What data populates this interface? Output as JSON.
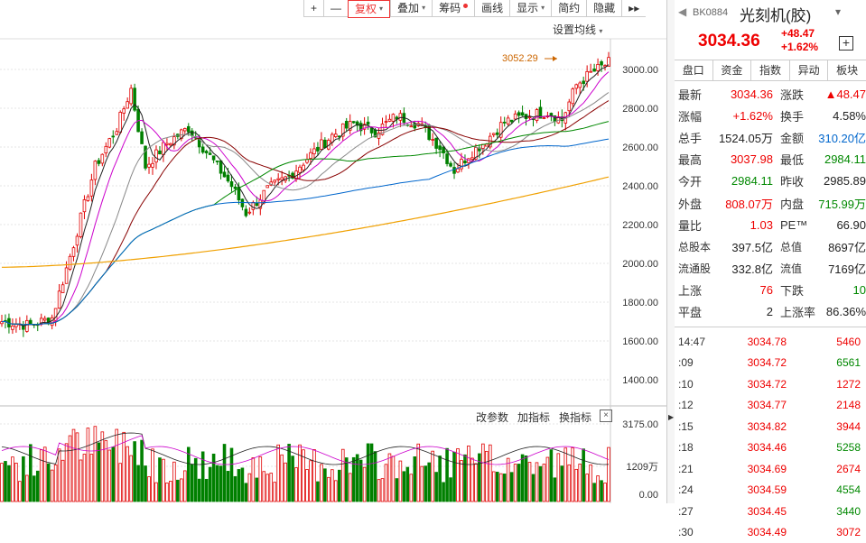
{
  "toolbar": {
    "items": [
      {
        "label": "+"
      },
      {
        "label": "—"
      },
      {
        "label": "复权",
        "caret": "▾"
      },
      {
        "label": "叠加",
        "caret": "▾"
      },
      {
        "label": "筹码"
      },
      {
        "label": "画线"
      },
      {
        "label": "显示",
        "caret": "▾"
      },
      {
        "label": "简约"
      },
      {
        "label": "隐藏"
      },
      {
        "label": "▸▸"
      }
    ]
  },
  "ma_settings": {
    "label": "设置均线",
    "caret": "▾"
  },
  "chart": {
    "y_axis_labels": [
      "3000.00",
      "2800.00",
      "2600.00",
      "2400.00",
      "2200.00",
      "2000.00",
      "1800.00",
      "1600.00",
      "1400.00"
    ],
    "high_marker": "3052.29",
    "volume_axis_labels": [
      "3175.00",
      "1209万",
      "0.00"
    ]
  },
  "indicator_bar": {
    "items": [
      "改参数",
      "加指标",
      "换指标"
    ],
    "close": "×"
  },
  "colors": {
    "up": "#e00000",
    "down": "#008000",
    "ma5": "#222222",
    "ma10": "#cc00cc",
    "ma20": "#888888",
    "ma30": "#880000",
    "ma60": "#008800",
    "ma120": "#0066cc",
    "ma250": "#f0a000"
  },
  "quote": {
    "code": "BK0884",
    "name": "光刻机(胶)",
    "price": "3034.36",
    "change": "+48.47",
    "change_pct": "+1.62%",
    "tabs": [
      "盘口",
      "资金",
      "指数",
      "异动",
      "板块"
    ],
    "stats": [
      {
        "l1": "最新",
        "v1": "3034.36",
        "c1": "red",
        "l2": "涨跌",
        "v2": "▲48.47",
        "c2": "red"
      },
      {
        "l1": "涨幅",
        "v1": "+1.62%",
        "c1": "red",
        "l2": "换手",
        "v2": "4.58%",
        "c2": "black"
      },
      {
        "l1": "总手",
        "v1": "1524.05万",
        "c1": "black",
        "l2": "金额",
        "v2": "310.20亿",
        "c2": "blue"
      },
      {
        "l1": "最高",
        "v1": "3037.98",
        "c1": "red",
        "l2": "最低",
        "v2": "2984.11",
        "c2": "green"
      },
      {
        "l1": "今开",
        "v1": "2984.11",
        "c1": "green",
        "l2": "昨收",
        "v2": "2985.89",
        "c2": "black"
      },
      {
        "l1": "外盘",
        "v1": "808.07万",
        "c1": "red",
        "l2": "内盘",
        "v2": "715.99万",
        "c2": "green"
      },
      {
        "l1": "量比",
        "v1": "1.03",
        "c1": "red",
        "l2": "PE™",
        "v2": "66.90",
        "c2": "black"
      },
      {
        "l1": "总股本",
        "v1": "397.5亿",
        "c1": "black",
        "l2": "总值",
        "v2": "8697亿",
        "c2": "black",
        "sub": true
      },
      {
        "l1": "流通股",
        "v1": "332.8亿",
        "c1": "black",
        "l2": "流值",
        "v2": "7169亿",
        "c2": "black",
        "sub": true
      },
      {
        "l1": "上涨",
        "v1": "76",
        "c1": "red",
        "l2": "下跌",
        "v2": "10",
        "c2": "green"
      },
      {
        "l1": "平盘",
        "v1": "2",
        "c1": "black",
        "l2": "上涨率",
        "v2": "86.36%",
        "c2": "black"
      }
    ],
    "ticks": [
      {
        "t": "14:47",
        "p": "3034.78",
        "v": "5460",
        "c": "red"
      },
      {
        "t": ":09",
        "p": "3034.72",
        "v": "6561",
        "c": "green"
      },
      {
        "t": ":10",
        "p": "3034.72",
        "v": "1272",
        "c": "red"
      },
      {
        "t": ":12",
        "p": "3034.77",
        "v": "2148",
        "c": "red"
      },
      {
        "t": ":15",
        "p": "3034.82",
        "v": "3944",
        "c": "red"
      },
      {
        "t": ":18",
        "p": "3034.46",
        "v": "5258",
        "c": "green"
      },
      {
        "t": ":21",
        "p": "3034.69",
        "v": "2674",
        "c": "red"
      },
      {
        "t": ":24",
        "p": "3034.59",
        "v": "4554",
        "c": "green"
      },
      {
        "t": ":27",
        "p": "3034.45",
        "v": "3440",
        "c": "green"
      },
      {
        "t": ":30",
        "p": "3034.49",
        "v": "3072",
        "c": "red"
      }
    ]
  }
}
